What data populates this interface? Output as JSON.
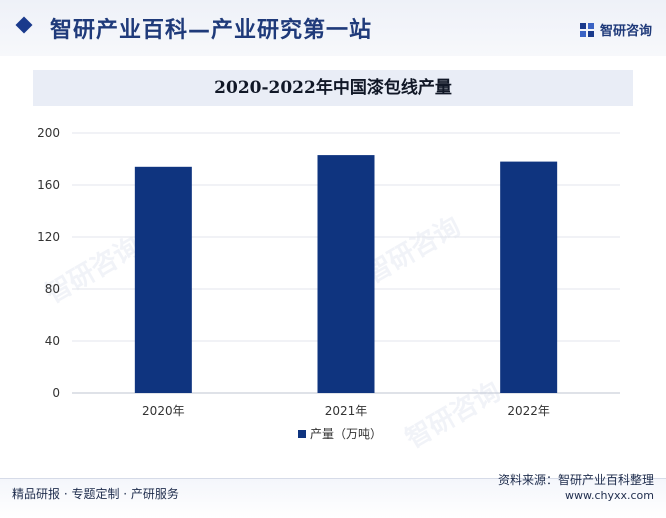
{
  "header": {
    "title": "智研产业百科—产业研究第一站",
    "brand": "智研咨询"
  },
  "watermark": "智研咨询",
  "chart_data": {
    "type": "bar",
    "title": "2020-2022年中国漆包线产量",
    "categories": [
      "2020年",
      "2021年",
      "2022年"
    ],
    "series": [
      {
        "name": "产量（万吨）",
        "values": [
          174,
          183,
          178
        ],
        "color": "#0f347f"
      }
    ],
    "ylim": [
      0,
      200
    ],
    "yticks": [
      0,
      40,
      80,
      120,
      160,
      200
    ],
    "grid": true,
    "legend_position": "bottom"
  },
  "footer": {
    "left": "精品研报 · 专题定制 · 产研服务",
    "source": "资料来源：智研产业百科整理",
    "url": "www.chyxx.com"
  }
}
